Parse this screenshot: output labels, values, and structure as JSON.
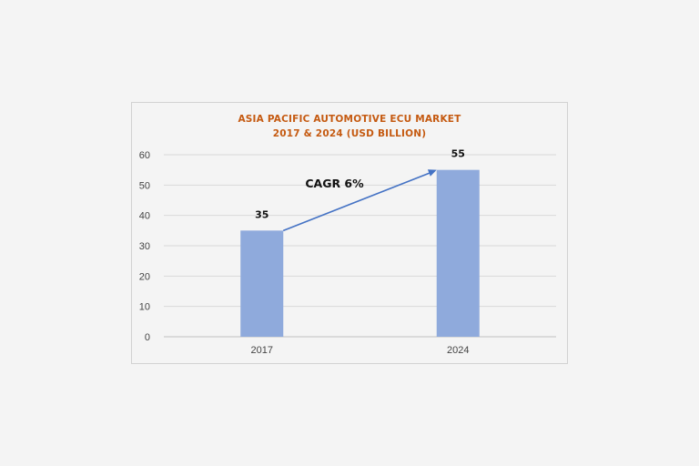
{
  "chart_data": {
    "type": "bar",
    "title": [
      "ASIA PACIFIC AUTOMOTIVE ECU MARKET",
      "2017 & 2024 (USD BILLION)"
    ],
    "categories": [
      "2017",
      "2024"
    ],
    "values": [
      35,
      55
    ],
    "data_labels": [
      "35",
      "55"
    ],
    "ylim": [
      0,
      60
    ],
    "yticks": [
      "0",
      "10",
      "20",
      "30",
      "40",
      "50",
      "60"
    ],
    "xlabel": "",
    "ylabel": "",
    "grid": true,
    "legend": "none",
    "annotation": {
      "text": "CAGR 6%",
      "from": "2017",
      "to": "2024"
    }
  },
  "colors": {
    "title": "#c55a11",
    "bar": "#8faadc",
    "grid": "#d9d9d9",
    "axis": "#bfbfbf",
    "arrow": "#4472c4"
  }
}
